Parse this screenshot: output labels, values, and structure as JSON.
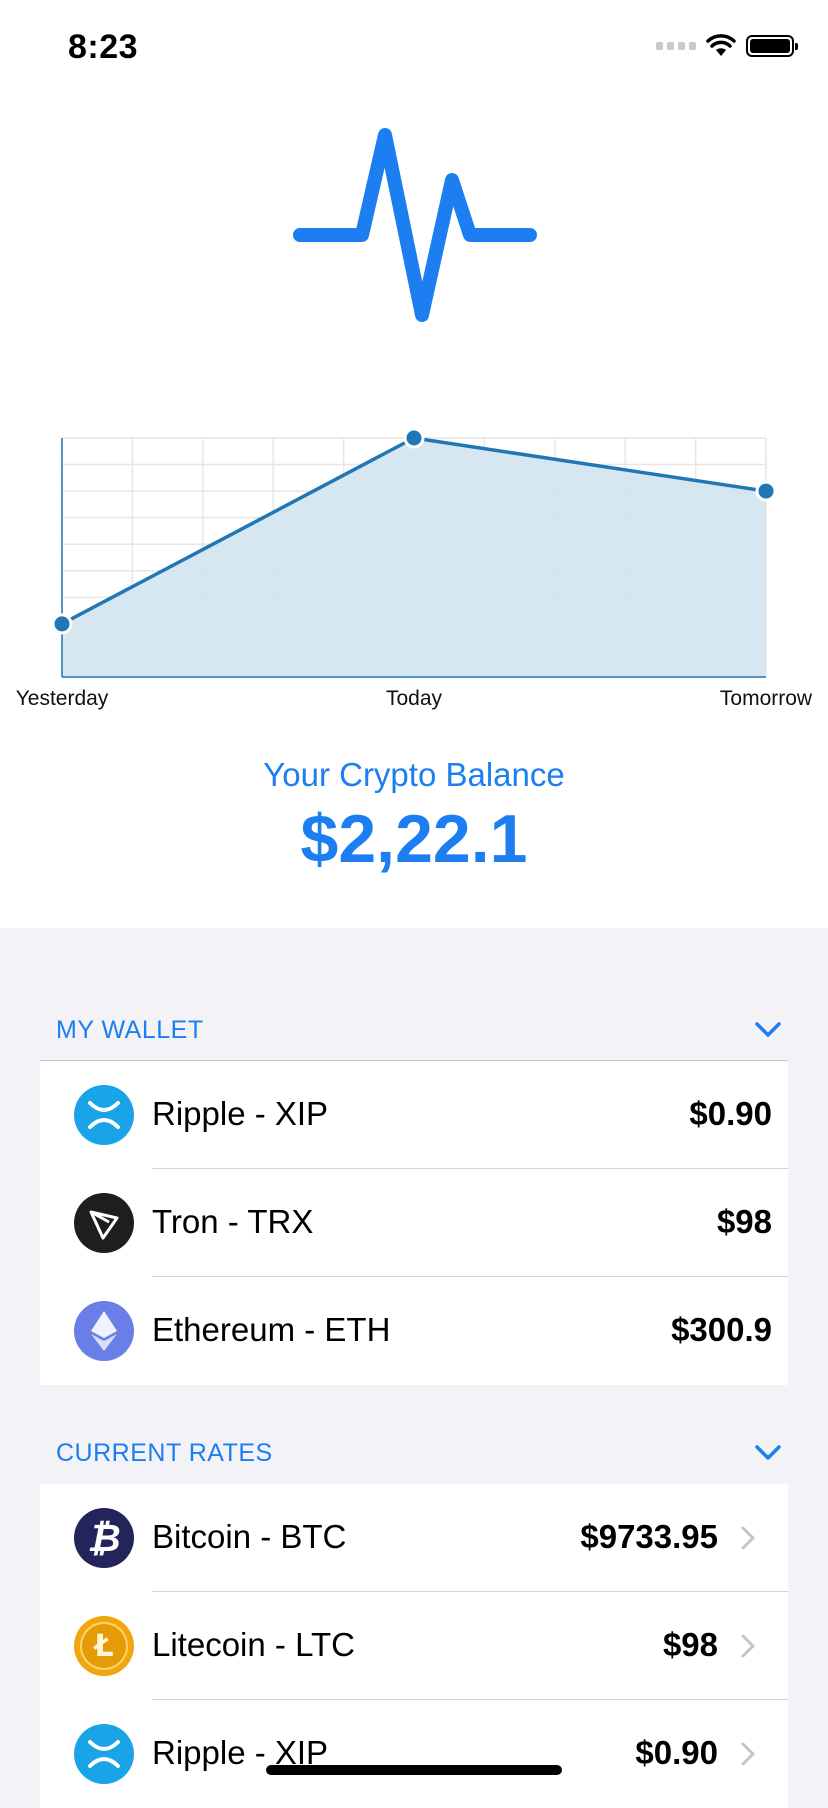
{
  "status": {
    "time": "8:23"
  },
  "chart_data": {
    "type": "area",
    "categories": [
      "Yesterday",
      "Today",
      "Tomorrow"
    ],
    "values": [
      2,
      9,
      7
    ],
    "ylim": [
      0,
      9
    ],
    "grid": true,
    "title": "",
    "xlabel": "",
    "ylabel": "",
    "colors": {
      "line": "#2176b5",
      "fill": "#d2e4f1",
      "grid": "#e6e6e6"
    }
  },
  "balance": {
    "label": "Your Crypto Balance",
    "value": "$2,22.1"
  },
  "wallet": {
    "title": "MY WALLET",
    "items": [
      {
        "name": "Ripple - XIP",
        "price": "$0.90",
        "icon": "ripple-icon"
      },
      {
        "name": "Tron - TRX",
        "price": "$98",
        "icon": "tron-icon"
      },
      {
        "name": "Ethereum - ETH",
        "price": "$300.9",
        "icon": "ethereum-icon"
      }
    ]
  },
  "rates": {
    "title": "CURRENT RATES",
    "items": [
      {
        "name": "Bitcoin - BTC",
        "price": "$9733.95",
        "icon": "bitcoin-icon"
      },
      {
        "name": "Litecoin - LTC",
        "price": "$98",
        "icon": "litecoin-icon"
      },
      {
        "name": "Ripple - XIP",
        "price": "$0.90",
        "icon": "ripple-icon"
      }
    ]
  },
  "colors": {
    "accent": "#1c7ef1",
    "background": "#f2f2f7"
  }
}
